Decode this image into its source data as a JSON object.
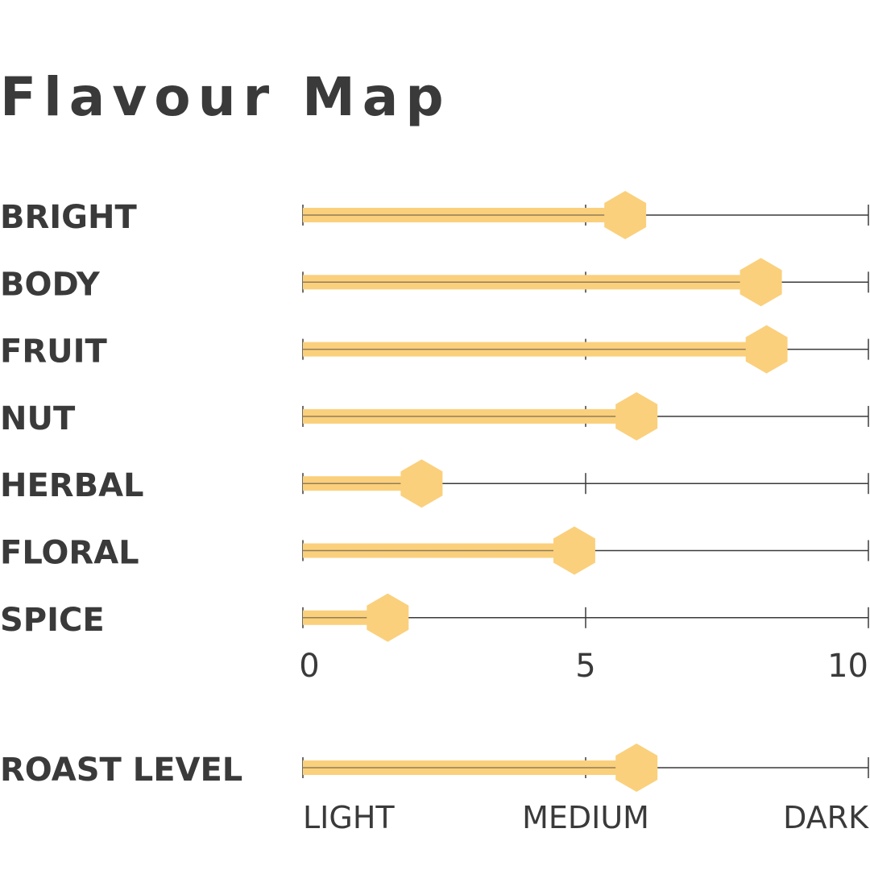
{
  "chart_data": {
    "type": "bar",
    "title": "Flavour Map",
    "categories": [
      "BRIGHT",
      "BODY",
      "FRUIT",
      "NUT",
      "HERBAL",
      "FLORAL",
      "SPICE"
    ],
    "values": [
      5.7,
      8.1,
      8.2,
      5.9,
      2.1,
      4.8,
      1.5
    ],
    "xlim": [
      0,
      10
    ],
    "xticks": [
      "0",
      "5",
      "10"
    ],
    "roast": {
      "label": "ROAST LEVEL",
      "value": 5.9,
      "scale_labels": [
        "LIGHT",
        "MEDIUM",
        "DARK"
      ]
    },
    "colors": {
      "bar": "#fbd07c",
      "marker": "#fbd07c",
      "line": "#3a3a3a",
      "text": "#3a3a3a"
    }
  }
}
